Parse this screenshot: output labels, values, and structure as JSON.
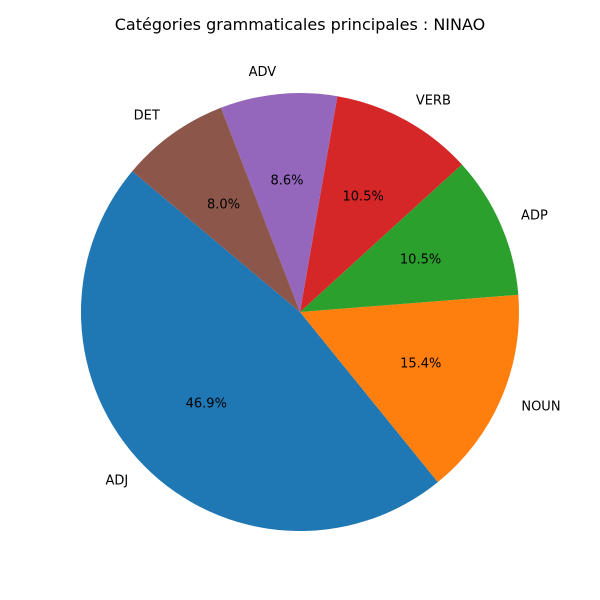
{
  "chart_data": {
    "type": "pie",
    "title": "Catégories grammaticales principales : NINAO",
    "categories": [
      "ADJ",
      "NOUN",
      "ADP",
      "VERB",
      "ADV",
      "DET"
    ],
    "values": [
      46.9,
      15.4,
      10.5,
      10.5,
      8.6,
      8.0
    ],
    "pct_labels": [
      "46.9%",
      "15.4%",
      "10.5%",
      "10.5%",
      "8.6%",
      "8.0%"
    ],
    "colors": [
      "#1f77b4",
      "#ff7f0e",
      "#2ca02c",
      "#d62728",
      "#9467bd",
      "#8c564b"
    ],
    "start_angle_deg": 140,
    "direction": "counterclockwise",
    "legend": "none"
  }
}
